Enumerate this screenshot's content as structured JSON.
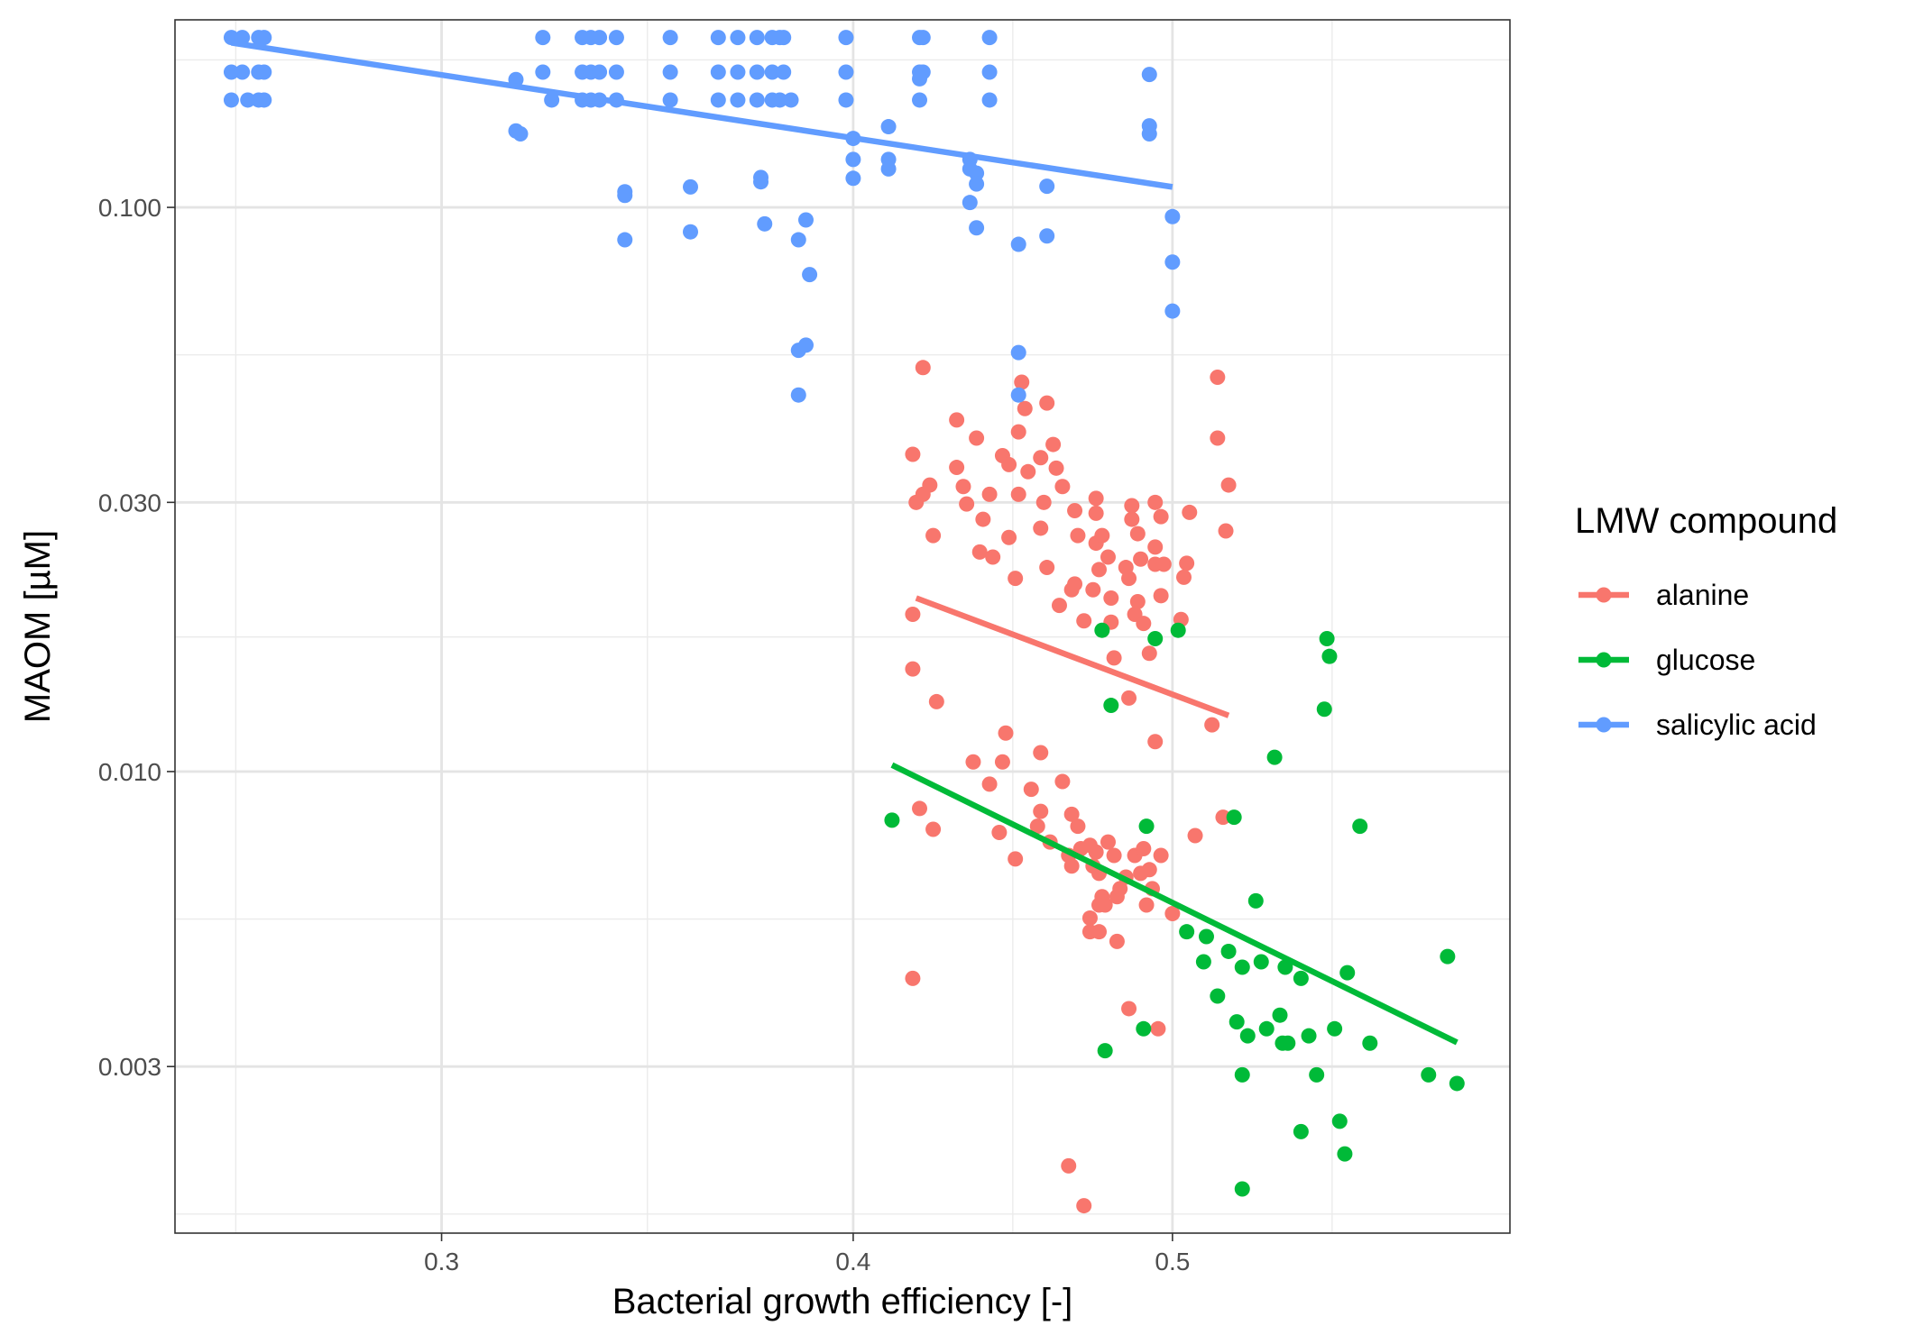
{
  "chart_data": {
    "type": "scatter",
    "title": "",
    "xlabel": "Bacterial growth efficiency [-]",
    "ylabel": "MAOM [µM]",
    "x_scale": "log",
    "y_scale": "log",
    "xlim": [
      0.249,
      0.633
    ],
    "ylim": [
      0.00152,
      0.215
    ],
    "x_ticks": [
      0.3,
      0.4,
      0.5
    ],
    "x_tick_labels": [
      "0.3",
      "0.4",
      "0.5"
    ],
    "y_ticks": [
      0.003,
      0.01,
      0.03,
      0.1
    ],
    "y_tick_labels": [
      "0.003",
      "0.010",
      "0.030",
      "0.100"
    ],
    "grid": true,
    "legend_title": "LMW compound",
    "legend_position": "right",
    "series": [
      {
        "name": "alanine",
        "color": "#F8766D",
        "trend": [
          [
            0.418,
            0.0203
          ],
          [
            0.52,
            0.01257
          ]
        ],
        "points": [
          [
            0.42,
            0.052
          ],
          [
            0.417,
            0.0365
          ],
          [
            0.42,
            0.031
          ],
          [
            0.422,
            0.0322
          ],
          [
            0.418,
            0.03
          ],
          [
            0.423,
            0.0262
          ],
          [
            0.417,
            0.019
          ],
          [
            0.417,
            0.0152
          ],
          [
            0.424,
            0.0133
          ],
          [
            0.423,
            0.0079
          ],
          [
            0.419,
            0.0086
          ],
          [
            0.417,
            0.0043
          ],
          [
            0.43,
            0.042
          ],
          [
            0.43,
            0.0346
          ],
          [
            0.432,
            0.032
          ],
          [
            0.433,
            0.0298
          ],
          [
            0.436,
            0.039
          ],
          [
            0.438,
            0.028
          ],
          [
            0.437,
            0.0245
          ],
          [
            0.441,
            0.024
          ],
          [
            0.444,
            0.0363
          ],
          [
            0.446,
            0.035
          ],
          [
            0.44,
            0.031
          ],
          [
            0.45,
            0.049
          ],
          [
            0.449,
            0.04
          ],
          [
            0.451,
            0.044
          ],
          [
            0.452,
            0.034
          ],
          [
            0.446,
            0.026
          ],
          [
            0.448,
            0.022
          ],
          [
            0.449,
            0.031
          ],
          [
            0.458,
            0.045
          ],
          [
            0.46,
            0.038
          ],
          [
            0.456,
            0.036
          ],
          [
            0.461,
            0.0345
          ],
          [
            0.457,
            0.03
          ],
          [
            0.463,
            0.032
          ],
          [
            0.456,
            0.027
          ],
          [
            0.458,
            0.023
          ],
          [
            0.462,
            0.0197
          ],
          [
            0.467,
            0.029
          ],
          [
            0.466,
            0.021
          ],
          [
            0.468,
            0.0262
          ],
          [
            0.467,
            0.0215
          ],
          [
            0.47,
            0.0185
          ],
          [
            0.474,
            0.0305
          ],
          [
            0.474,
            0.0287
          ],
          [
            0.474,
            0.0254
          ],
          [
            0.476,
            0.0262
          ],
          [
            0.475,
            0.0228
          ],
          [
            0.473,
            0.021
          ],
          [
            0.478,
            0.024
          ],
          [
            0.479,
            0.0203
          ],
          [
            0.486,
            0.0296
          ],
          [
            0.486,
            0.028
          ],
          [
            0.488,
            0.0264
          ],
          [
            0.489,
            0.0238
          ],
          [
            0.484,
            0.023
          ],
          [
            0.485,
            0.022
          ],
          [
            0.488,
            0.02
          ],
          [
            0.487,
            0.019
          ],
          [
            0.49,
            0.0183
          ],
          [
            0.494,
            0.03
          ],
          [
            0.496,
            0.0283
          ],
          [
            0.494,
            0.025
          ],
          [
            0.494,
            0.0233
          ],
          [
            0.496,
            0.0205
          ],
          [
            0.492,
            0.0162
          ],
          [
            0.479,
            0.0184
          ],
          [
            0.48,
            0.0159
          ],
          [
            0.485,
            0.0135
          ],
          [
            0.494,
            0.0113
          ],
          [
            0.497,
            0.0233
          ],
          [
            0.506,
            0.0288
          ],
          [
            0.505,
            0.0234
          ],
          [
            0.504,
            0.0221
          ],
          [
            0.503,
            0.0186
          ],
          [
            0.516,
            0.05
          ],
          [
            0.516,
            0.039
          ],
          [
            0.52,
            0.0322
          ],
          [
            0.519,
            0.0267
          ],
          [
            0.514,
            0.0121
          ],
          [
            0.518,
            0.0083
          ],
          [
            0.435,
            0.0104
          ],
          [
            0.445,
            0.0117
          ],
          [
            0.444,
            0.0104
          ],
          [
            0.456,
            0.0108
          ],
          [
            0.44,
            0.0095
          ],
          [
            0.453,
            0.0093
          ],
          [
            0.456,
            0.0085
          ],
          [
            0.455,
            0.008
          ],
          [
            0.463,
            0.0096
          ],
          [
            0.466,
            0.0084
          ],
          [
            0.468,
            0.008
          ],
          [
            0.459,
            0.0075
          ],
          [
            0.443,
            0.0078
          ],
          [
            0.448,
            0.007
          ],
          [
            0.465,
            0.0071
          ],
          [
            0.466,
            0.0068
          ],
          [
            0.469,
            0.0073
          ],
          [
            0.472,
            0.0074
          ],
          [
            0.474,
            0.0072
          ],
          [
            0.473,
            0.0068
          ],
          [
            0.475,
            0.0066
          ],
          [
            0.478,
            0.0075
          ],
          [
            0.48,
            0.0071
          ],
          [
            0.476,
            0.006
          ],
          [
            0.475,
            0.0058
          ],
          [
            0.472,
            0.0055
          ],
          [
            0.472,
            0.0052
          ],
          [
            0.477,
            0.0058
          ],
          [
            0.481,
            0.006
          ],
          [
            0.484,
            0.0065
          ],
          [
            0.487,
            0.0071
          ],
          [
            0.49,
            0.0073
          ],
          [
            0.492,
            0.0067
          ],
          [
            0.491,
            0.0058
          ],
          [
            0.489,
            0.0066
          ],
          [
            0.493,
            0.0062
          ],
          [
            0.496,
            0.0071
          ],
          [
            0.5,
            0.0056
          ],
          [
            0.508,
            0.0077
          ],
          [
            0.482,
            0.0062
          ],
          [
            0.475,
            0.0052
          ],
          [
            0.481,
            0.005
          ],
          [
            0.485,
            0.0038
          ],
          [
            0.495,
            0.0035
          ],
          [
            0.465,
            0.002
          ],
          [
            0.47,
            0.0017
          ]
        ]
      },
      {
        "name": "glucose",
        "color": "#00BA38",
        "trend": [
          [
            0.411,
            0.01027
          ],
          [
            0.61,
            0.00331
          ]
        ],
        "points": [
          [
            0.411,
            0.0082
          ],
          [
            0.476,
            0.0178
          ],
          [
            0.479,
            0.0131
          ],
          [
            0.494,
            0.0172
          ],
          [
            0.502,
            0.0178
          ],
          [
            0.491,
            0.008
          ],
          [
            0.477,
            0.0032
          ],
          [
            0.49,
            0.0035
          ],
          [
            0.505,
            0.0052
          ],
          [
            0.511,
            0.0046
          ],
          [
            0.516,
            0.004
          ],
          [
            0.512,
            0.0051
          ],
          [
            0.52,
            0.0048
          ],
          [
            0.525,
            0.0045
          ],
          [
            0.53,
            0.0059
          ],
          [
            0.532,
            0.0046
          ],
          [
            0.523,
            0.0036
          ],
          [
            0.527,
            0.0034
          ],
          [
            0.534,
            0.0035
          ],
          [
            0.539,
            0.0037
          ],
          [
            0.542,
            0.0033
          ],
          [
            0.541,
            0.0045
          ],
          [
            0.547,
            0.0043
          ],
          [
            0.55,
            0.0034
          ],
          [
            0.553,
            0.0029
          ],
          [
            0.557,
            0.0172
          ],
          [
            0.558,
            0.016
          ],
          [
            0.556,
            0.0129
          ],
          [
            0.537,
            0.0106
          ],
          [
            0.54,
            0.0033
          ],
          [
            0.56,
            0.0035
          ],
          [
            0.562,
            0.0024
          ],
          [
            0.565,
            0.0044
          ],
          [
            0.57,
            0.008
          ],
          [
            0.564,
            0.0021
          ],
          [
            0.574,
            0.0033
          ],
          [
            0.522,
            0.0083
          ],
          [
            0.525,
            0.0029
          ],
          [
            0.598,
            0.0029
          ],
          [
            0.61,
            0.0028
          ],
          [
            0.606,
            0.0047
          ],
          [
            0.547,
            0.0023
          ],
          [
            0.525,
            0.00182
          ]
        ]
      },
      {
        "name": "salicylic acid",
        "color": "#619CFF",
        "trend": [
          [
            0.259,
            0.1958
          ],
          [
            0.5,
            0.1087
          ]
        ],
        "points": [
          [
            0.259,
            0.2
          ],
          [
            0.261,
            0.2
          ],
          [
            0.264,
            0.2
          ],
          [
            0.265,
            0.2
          ],
          [
            0.259,
            0.1737
          ],
          [
            0.261,
            0.1737
          ],
          [
            0.264,
            0.1737
          ],
          [
            0.265,
            0.1737
          ],
          [
            0.259,
            0.155
          ],
          [
            0.262,
            0.155
          ],
          [
            0.264,
            0.155
          ],
          [
            0.265,
            0.155
          ],
          [
            0.316,
            0.1685
          ],
          [
            0.316,
            0.1366
          ],
          [
            0.317,
            0.135
          ],
          [
            0.322,
            0.2
          ],
          [
            0.322,
            0.1737
          ],
          [
            0.324,
            0.155
          ],
          [
            0.331,
            0.2
          ],
          [
            0.333,
            0.2
          ],
          [
            0.335,
            0.2
          ],
          [
            0.339,
            0.2
          ],
          [
            0.331,
            0.1737
          ],
          [
            0.333,
            0.1737
          ],
          [
            0.335,
            0.1737
          ],
          [
            0.339,
            0.1737
          ],
          [
            0.331,
            0.155
          ],
          [
            0.333,
            0.155
          ],
          [
            0.335,
            0.155
          ],
          [
            0.339,
            0.155
          ],
          [
            0.341,
            0.1066
          ],
          [
            0.341,
            0.105
          ],
          [
            0.341,
            0.0876
          ],
          [
            0.352,
            0.2
          ],
          [
            0.352,
            0.1737
          ],
          [
            0.352,
            0.155
          ],
          [
            0.357,
            0.1087
          ],
          [
            0.357,
            0.0905
          ],
          [
            0.364,
            0.2
          ],
          [
            0.364,
            0.1737
          ],
          [
            0.364,
            0.155
          ],
          [
            0.369,
            0.2
          ],
          [
            0.369,
            0.1737
          ],
          [
            0.369,
            0.155
          ],
          [
            0.374,
            0.2
          ],
          [
            0.374,
            0.1737
          ],
          [
            0.374,
            0.155
          ],
          [
            0.375,
            0.113
          ],
          [
            0.375,
            0.111
          ],
          [
            0.376,
            0.0935
          ],
          [
            0.378,
            0.2
          ],
          [
            0.378,
            0.1737
          ],
          [
            0.378,
            0.155
          ],
          [
            0.38,
            0.2
          ],
          [
            0.381,
            0.2
          ],
          [
            0.381,
            0.1737
          ],
          [
            0.38,
            0.155
          ],
          [
            0.383,
            0.155
          ],
          [
            0.385,
            0.0876
          ],
          [
            0.387,
            0.095
          ],
          [
            0.388,
            0.076
          ],
          [
            0.385,
            0.0558
          ],
          [
            0.387,
            0.057
          ],
          [
            0.385,
            0.0465
          ],
          [
            0.398,
            0.2
          ],
          [
            0.398,
            0.1737
          ],
          [
            0.398,
            0.155
          ],
          [
            0.4,
            0.1325
          ],
          [
            0.4,
            0.1216
          ],
          [
            0.4,
            0.1126
          ],
          [
            0.41,
            0.139
          ],
          [
            0.41,
            0.1216
          ],
          [
            0.41,
            0.117
          ],
          [
            0.419,
            0.2
          ],
          [
            0.42,
            0.2
          ],
          [
            0.419,
            0.1737
          ],
          [
            0.42,
            0.1737
          ],
          [
            0.419,
            0.169
          ],
          [
            0.419,
            0.155
          ],
          [
            0.434,
            0.1216
          ],
          [
            0.434,
            0.117
          ],
          [
            0.436,
            0.115
          ],
          [
            0.436,
            0.11
          ],
          [
            0.434,
            0.102
          ],
          [
            0.436,
            0.092
          ],
          [
            0.44,
            0.2
          ],
          [
            0.44,
            0.1737
          ],
          [
            0.44,
            0.155
          ],
          [
            0.449,
            0.086
          ],
          [
            0.449,
            0.0553
          ],
          [
            0.449,
            0.0465
          ],
          [
            0.458,
            0.109
          ],
          [
            0.458,
            0.089
          ],
          [
            0.492,
            0.172
          ],
          [
            0.492,
            0.1395
          ],
          [
            0.492,
            0.135
          ],
          [
            0.5,
            0.0963
          ],
          [
            0.5,
            0.08
          ],
          [
            0.5,
            0.0655
          ]
        ]
      }
    ]
  }
}
